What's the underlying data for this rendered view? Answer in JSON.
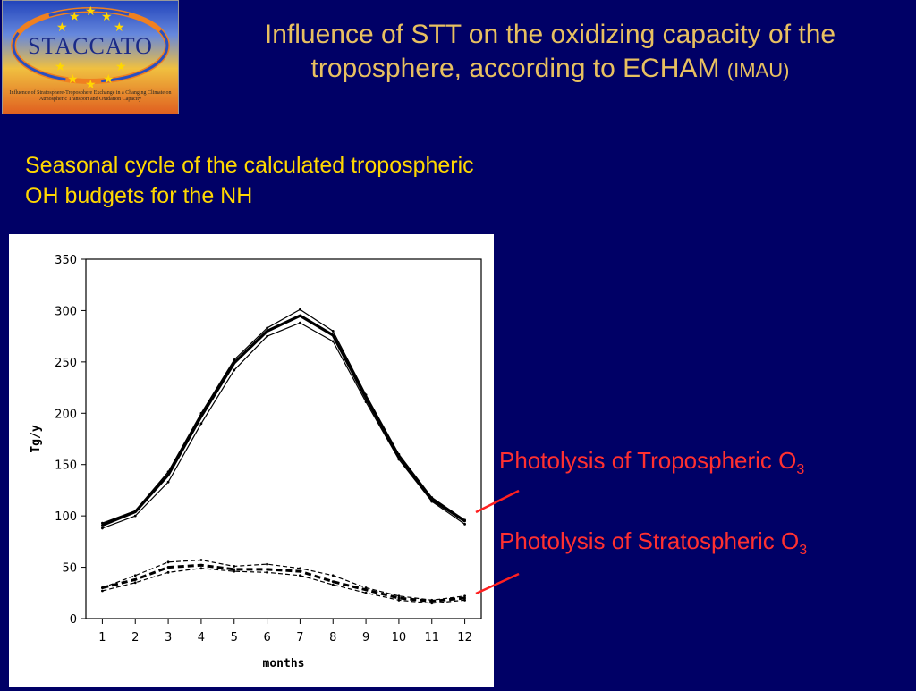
{
  "logo": {
    "brand": "STACCATO",
    "tagline": "Influence of Stratosphere-Troposphere Exchange in a Changing Climate on Atmospheric Transport and Oxidation Capacity"
  },
  "title": {
    "main": "Influence of STT on the oxidizing capacity of the troposphere, according to ECHAM",
    "small": "(IMAU)"
  },
  "subtitle": "Seasonal cycle of the calculated tropospheric OH budgets for the NH",
  "annotations": {
    "tropo_label": "Photolysis of Tropospheric O",
    "tropo_sub": "3",
    "strato_label": "Photolysis of Stratospheric O",
    "strato_sub": "3",
    "arrow_color": "#ff2020"
  },
  "chart_data": {
    "type": "line",
    "xlabel": "months",
    "ylabel": "Tg/y",
    "x": [
      1,
      2,
      3,
      4,
      5,
      6,
      7,
      8,
      9,
      10,
      11,
      12
    ],
    "xlim": [
      0.5,
      12.5
    ],
    "ylim": [
      0,
      350
    ],
    "yticks": [
      0,
      50,
      100,
      150,
      200,
      250,
      300,
      350
    ],
    "grid": false,
    "series": [
      {
        "values": [
          93,
          105,
          143,
          200,
          252,
          283,
          301,
          280,
          218,
          160,
          118,
          96
        ],
        "style": "thin"
      },
      {
        "values": [
          91,
          104,
          140,
          197,
          249,
          280,
          295,
          276,
          215,
          158,
          116,
          95
        ],
        "style": "thick"
      },
      {
        "values": [
          88,
          100,
          133,
          190,
          242,
          275,
          288,
          270,
          211,
          155,
          114,
          92
        ],
        "style": "thin"
      },
      {
        "values": [
          30,
          42,
          55,
          57,
          51,
          53,
          49,
          42,
          30,
          22,
          18,
          22
        ],
        "style": "dashed"
      },
      {
        "values": [
          30,
          38,
          50,
          52,
          48,
          48,
          46,
          36,
          28,
          20,
          17,
          20
        ],
        "style": "dashed-bold"
      },
      {
        "values": [
          27,
          35,
          45,
          49,
          46,
          45,
          42,
          33,
          25,
          18,
          15,
          18
        ],
        "style": "dashed"
      }
    ]
  }
}
